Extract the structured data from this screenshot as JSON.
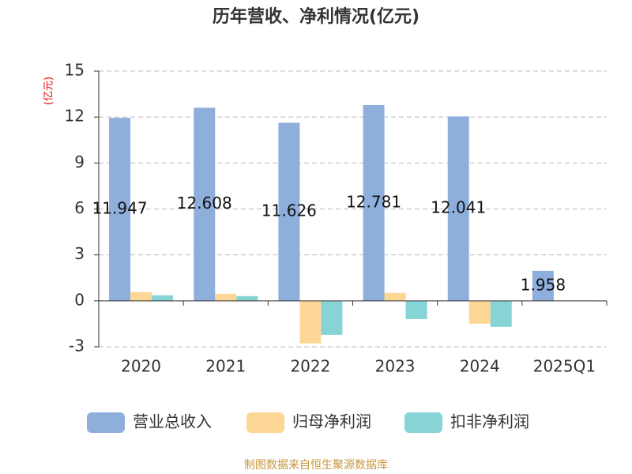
{
  "chart_data": {
    "type": "bar",
    "title": "历年营收、净利情况(亿元)",
    "y_label": "(亿元)",
    "categories": [
      "2020",
      "2021",
      "2022",
      "2023",
      "2024",
      "2025Q1"
    ],
    "series": [
      {
        "name": "营业总收入",
        "color": "#8eaedb",
        "values": [
          11.947,
          12.608,
          11.626,
          12.781,
          12.041,
          1.958
        ],
        "show_labels": true
      },
      {
        "name": "归母净利润",
        "color": "#fdd795",
        "values": [
          0.57,
          0.46,
          -2.78,
          0.52,
          -1.49,
          0.03
        ],
        "show_labels": false
      },
      {
        "name": "扣非净利润",
        "color": "#86d4d6",
        "values": [
          0.36,
          0.31,
          -2.22,
          -1.19,
          -1.7,
          0.02
        ],
        "show_labels": false
      }
    ],
    "ylim": [
      -3,
      15
    ],
    "yticks": [
      -3,
      0,
      3,
      6,
      9,
      12,
      15
    ],
    "grid": true,
    "legend": "bottom",
    "source": "制图数据来自恒生聚源数据库"
  }
}
